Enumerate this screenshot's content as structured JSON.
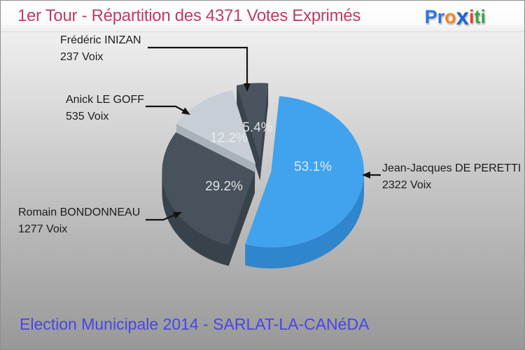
{
  "header": {
    "title": "1er Tour - Répartition des 4371 Votes Exprimés",
    "title_color": "#c13a6b"
  },
  "logo": {
    "word": "Proxiti",
    "letter_colors": [
      "#2e74d9",
      "#2e74d9",
      "#f5871f",
      "#1f63d6",
      "#e8431f",
      "#3fa047",
      "#3fa047"
    ]
  },
  "footer": {
    "text": "Election Municipale 2014 - SARLAT-LA-CANéDA",
    "color": "#4a45e8"
  },
  "chart_data": {
    "type": "pie",
    "style": "3d-exploded",
    "title": "1er Tour - Répartition des 4371 Votes Exprimés",
    "total_votes": 4371,
    "unit": "Voix",
    "start_angle_deg": 5,
    "clockwise": true,
    "slices": [
      {
        "label": "Jean-Jacques DE PERETTI",
        "votes": 2322,
        "votes_label": "2322 Voix",
        "percent": 53.1,
        "percent_label": "53.1%",
        "color": "#41a3ee",
        "side_color": "#2f86cc"
      },
      {
        "label": "Romain BONDONNEAU",
        "votes": 1277,
        "votes_label": "1277 Voix",
        "percent": 29.2,
        "percent_label": "29.2%",
        "color": "#47525d",
        "side_color": "#38424b"
      },
      {
        "label": "Anick LE GOFF",
        "votes": 535,
        "votes_label": "535 Voix",
        "percent": 12.2,
        "percent_label": "12.2%",
        "color": "#c7ced6",
        "side_color": "#a9b1ba"
      },
      {
        "label": "Frédéric INIZAN",
        "votes": 237,
        "votes_label": "237 Voix",
        "percent": 5.4,
        "percent_label": "5.4%",
        "color": "#49545f",
        "side_color": "#39434c"
      }
    ],
    "percent_text_color": "#f0f0f0",
    "leader_line_color": "#141414"
  }
}
